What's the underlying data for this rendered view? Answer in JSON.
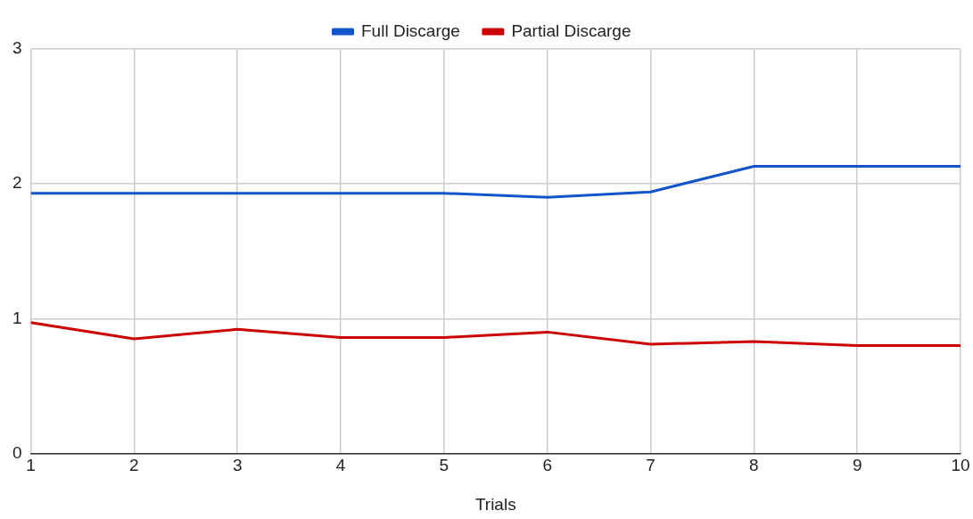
{
  "chart_data": {
    "type": "line",
    "xlabel": "Trials",
    "x": [
      1,
      2,
      3,
      4,
      5,
      6,
      7,
      8,
      9,
      10
    ],
    "series": [
      {
        "name": "Full Discarge",
        "color": "#1155cc",
        "values": [
          1.93,
          1.93,
          1.93,
          1.93,
          1.93,
          1.9,
          1.94,
          2.13,
          2.13,
          2.13
        ]
      },
      {
        "name": "Partial Discarge",
        "color": "#cc0000",
        "values": [
          0.97,
          0.85,
          0.92,
          0.86,
          0.86,
          0.9,
          0.81,
          0.83,
          0.8,
          0.8
        ]
      }
    ],
    "xlim": [
      1,
      10
    ],
    "xticks": [
      1,
      2,
      3,
      4,
      5,
      6,
      7,
      8,
      9,
      10
    ],
    "ylim": [
      0,
      3
    ],
    "yticks": [
      0,
      1,
      2,
      3
    ],
    "grid": true,
    "legend": "top",
    "marker": "none",
    "line_style": "solid"
  }
}
